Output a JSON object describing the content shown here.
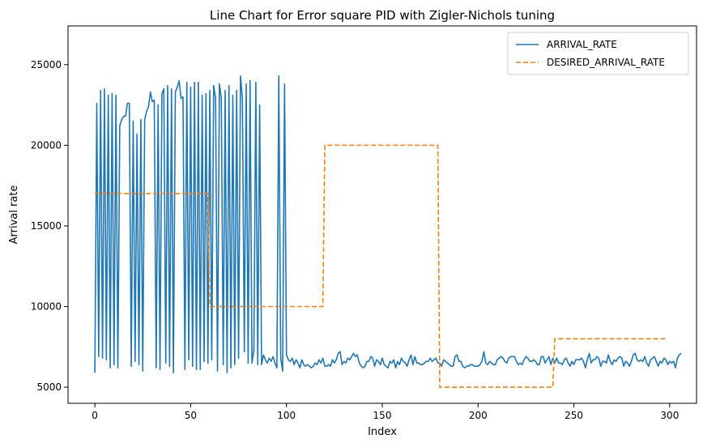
{
  "chart_data": {
    "type": "line",
    "title": "Line Chart for Error square PID with Zigler-Nichols tuning",
    "xlabel": "Index",
    "ylabel": "Arrival rate",
    "xlim": [
      -14,
      314
    ],
    "ylim": [
      4000,
      27400
    ],
    "xticks": [
      0,
      50,
      100,
      150,
      200,
      250,
      300
    ],
    "yticks": [
      5000,
      10000,
      15000,
      20000,
      25000
    ],
    "legend_position": "top-right",
    "series": [
      {
        "name": "ARRIVAL_RATE",
        "color": "#1f77b4",
        "dash": "solid",
        "values": [
          5900,
          22600,
          6900,
          23400,
          6800,
          23500,
          6700,
          23100,
          6200,
          23200,
          6400,
          23100,
          6200,
          21200,
          21600,
          21800,
          21800,
          22600,
          22600,
          6300,
          21500,
          6600,
          20700,
          6400,
          21600,
          6000,
          21600,
          22100,
          22400,
          23300,
          22700,
          22800,
          6200,
          22500,
          6100,
          23200,
          23500,
          6500,
          23700,
          6300,
          23500,
          5900,
          23300,
          23600,
          24000,
          22900,
          23000,
          6100,
          23900,
          6700,
          23600,
          6300,
          23900,
          6100,
          23900,
          6100,
          23100,
          6600,
          23200,
          6500,
          23400,
          6700,
          23700,
          22900,
          6000,
          23800,
          22900,
          6400,
          23400,
          5900,
          23700,
          6200,
          23100,
          6400,
          23400,
          6800,
          24300,
          22900,
          7200,
          23800,
          6500,
          24000,
          6500,
          7300,
          23900,
          6400,
          22500,
          6400,
          7000,
          6700,
          6500,
          6800,
          6600,
          6900,
          6500,
          6200,
          24300,
          6800,
          6000,
          23800,
          7000,
          6700,
          6600,
          6800,
          6400,
          6700,
          6500,
          6200,
          6700,
          6400,
          6300,
          6400,
          6300,
          6200,
          6300,
          6500,
          6400,
          6700,
          6500,
          6800,
          6300,
          6300,
          6400,
          6300,
          6700,
          6500,
          6700,
          7100,
          7200,
          6400,
          6600,
          6500,
          6800,
          6700,
          6900,
          7100,
          6900,
          7000,
          6500,
          6300,
          6200,
          6300,
          6600,
          6600,
          6900,
          6800,
          6300,
          6700,
          6600,
          6400,
          6800,
          6400,
          6300,
          6200,
          6600,
          6500,
          6700,
          6200,
          6600,
          6400,
          6800,
          6600,
          6500,
          6300,
          6700,
          7000,
          6400,
          6900,
          6500,
          6500,
          6400,
          6400,
          6500,
          6600,
          6600,
          6800,
          6600,
          6700,
          6800,
          6500,
          6500,
          6300,
          6700,
          6600,
          6500,
          6400,
          6300,
          6300,
          6900,
          7000,
          6600,
          6600,
          6300,
          6200,
          6300,
          6300,
          6400,
          6400,
          6300,
          6300,
          6300,
          6400,
          6600,
          7200,
          6500,
          6400,
          6600,
          6500,
          6400,
          6400,
          6700,
          6800,
          6900,
          6800,
          6600,
          6500,
          6800,
          6900,
          6900,
          6900,
          6600,
          6400,
          6500,
          6400,
          6700,
          6900,
          6800,
          6600,
          6600,
          6700,
          6600,
          6400,
          6400,
          6900,
          6900,
          6500,
          6700,
          6900,
          6400,
          6800,
          6500,
          6800,
          6500,
          6500,
          6400,
          6700,
          6800,
          6500,
          6300,
          6600,
          6400,
          6700,
          6700,
          6700,
          6800,
          6600,
          6200,
          6700,
          7100,
          6500,
          6700,
          6700,
          6900,
          6800,
          6300,
          6600,
          6600,
          6500,
          7000,
          6600,
          6400,
          6700,
          6600,
          6800,
          6900,
          6800,
          6300,
          6600,
          6500,
          6300,
          6600,
          7000,
          7100,
          6700,
          6600,
          6700,
          6600,
          6900,
          6500,
          6300,
          6700,
          6800,
          6900,
          6600,
          6300,
          6600,
          6500,
          6800,
          6700,
          6400,
          6600,
          6500,
          6600,
          6200,
          6800,
          7000,
          7100
        ]
      },
      {
        "name": "DESIRED_ARRIVAL_RATE",
        "color": "#ff7f0e",
        "dash": "dashed",
        "segments": [
          {
            "x_start": 0,
            "x_end": 59,
            "value": 17000
          },
          {
            "x_start": 60,
            "x_end": 119,
            "value": 10000
          },
          {
            "x_start": 120,
            "x_end": 179,
            "value": 20000
          },
          {
            "x_start": 180,
            "x_end": 239,
            "value": 5000
          },
          {
            "x_start": 240,
            "x_end": 299,
            "value": 8000
          }
        ]
      }
    ]
  }
}
